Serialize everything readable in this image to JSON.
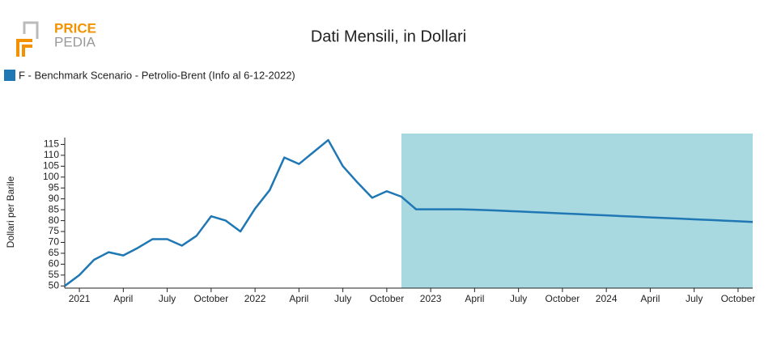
{
  "logo": {
    "top": "PRICE",
    "bottom": "PEDIA"
  },
  "chart_data": {
    "type": "line",
    "title": "Dati Mensili, in Dollari",
    "y_label": "Dollari per Barile",
    "x": [
      "2020-12",
      "2021-01",
      "2021-02",
      "2021-03",
      "2021-04",
      "2021-05",
      "2021-06",
      "2021-07",
      "2021-08",
      "2021-09",
      "2021-10",
      "2021-11",
      "2021-12",
      "2022-01",
      "2022-02",
      "2022-03",
      "2022-04",
      "2022-05",
      "2022-06",
      "2022-07",
      "2022-08",
      "2022-09",
      "2022-10",
      "2022-11",
      "2022-12",
      "2023-01",
      "2023-02",
      "2023-03",
      "2023-04",
      "2023-05",
      "2023-06",
      "2023-07",
      "2023-08",
      "2023-09",
      "2023-10",
      "2023-11",
      "2023-12",
      "2024-01",
      "2024-02",
      "2024-03",
      "2024-04",
      "2024-05",
      "2024-06",
      "2024-07",
      "2024-08",
      "2024-09",
      "2024-10",
      "2024-11"
    ],
    "series": [
      {
        "name": "F - Benchmark Scenario - Petrolio-Brent (Info al 6-12-2022)",
        "color": "#1f77b4",
        "values": [
          50,
          55,
          62,
          65.5,
          64,
          67.5,
          71.5,
          71.5,
          68.5,
          73,
          82,
          80,
          75,
          85.5,
          94,
          109,
          106,
          111.5,
          117,
          105,
          97.5,
          90.5,
          93.5,
          91,
          85.2,
          85.2,
          85.2,
          85.2,
          85.0,
          84.8,
          84.5,
          84.2,
          83.9,
          83.6,
          83.3,
          83.0,
          82.7,
          82.4,
          82.1,
          81.8,
          81.5,
          81.2,
          80.9,
          80.6,
          80.3,
          80.0,
          79.7,
          79.4
        ]
      }
    ],
    "highlight_range": [
      "2022-11",
      "2024-11"
    ],
    "highlight_color": "#a8d8e0",
    "xlim": [
      "2020-12",
      "2024-11"
    ],
    "xticks": [
      {
        "value": "2021-01",
        "label": "2021"
      },
      {
        "value": "2021-04",
        "label": "April"
      },
      {
        "value": "2021-07",
        "label": "July"
      },
      {
        "value": "2021-10",
        "label": "October"
      },
      {
        "value": "2022-01",
        "label": "2022"
      },
      {
        "value": "2022-04",
        "label": "April"
      },
      {
        "value": "2022-07",
        "label": "July"
      },
      {
        "value": "2022-10",
        "label": "October"
      },
      {
        "value": "2023-01",
        "label": "2023"
      },
      {
        "value": "2023-04",
        "label": "April"
      },
      {
        "value": "2023-07",
        "label": "July"
      },
      {
        "value": "2023-10",
        "label": "October"
      },
      {
        "value": "2024-01",
        "label": "2024"
      },
      {
        "value": "2024-04",
        "label": "April"
      },
      {
        "value": "2024-07",
        "label": "July"
      },
      {
        "value": "2024-10",
        "label": "October"
      }
    ],
    "ylim": [
      49,
      120
    ],
    "yticks": [
      50,
      55,
      60,
      65,
      70,
      75,
      80,
      85,
      90,
      95,
      100,
      105,
      110,
      115
    ],
    "grid": false
  }
}
